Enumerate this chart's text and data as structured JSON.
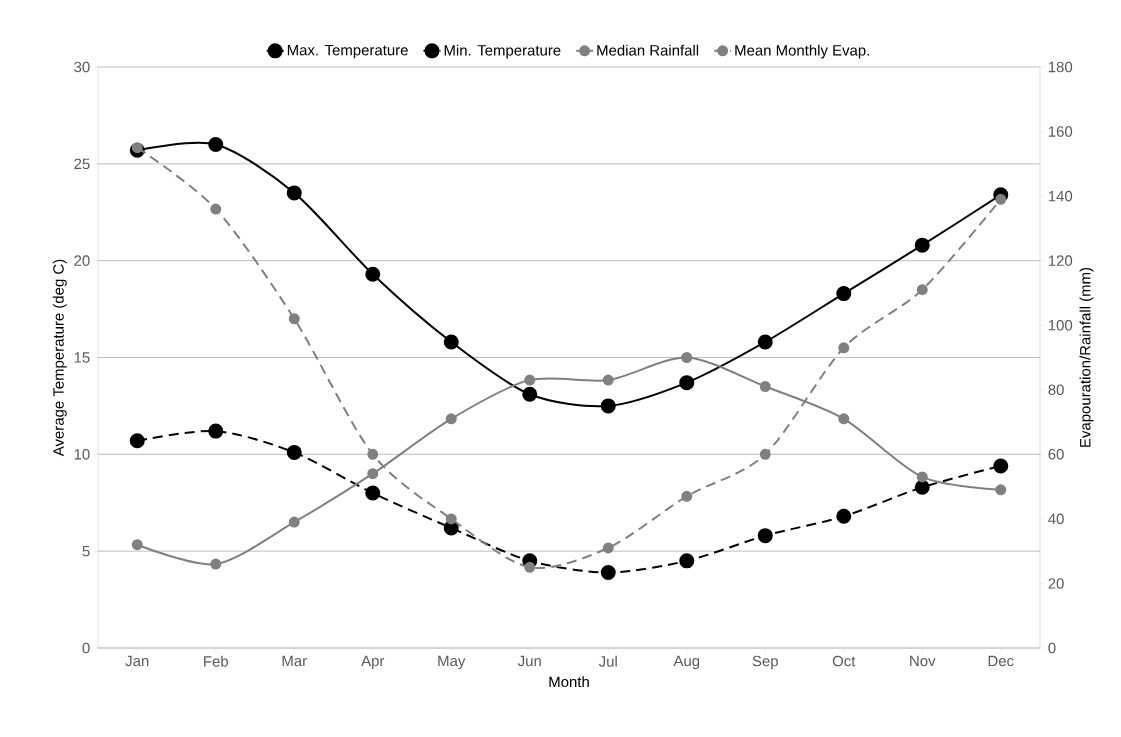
{
  "chart_data": {
    "type": "line",
    "xlabel": "Month",
    "ylabel": "Average Temperature (deg C)",
    "y2label": "Evapouration/Rainfall (mm)",
    "categories": [
      "Jan",
      "Feb",
      "Mar",
      "Apr",
      "May",
      "Jun",
      "Jul",
      "Aug",
      "Sep",
      "Oct",
      "Nov",
      "Dec"
    ],
    "series": [
      {
        "name": "Max. Temperature",
        "color": "#000000",
        "line_style": "solid",
        "values": [
          25.7,
          26.0,
          23.5,
          19.3,
          15.8,
          13.1,
          12.5,
          13.7,
          15.8,
          18.3,
          20.8,
          23.4
        ]
      },
      {
        "name": "Min. Temperature",
        "color": "#000000",
        "line_style": "dashed",
        "values": [
          10.7,
          11.2,
          10.1,
          8.0,
          6.2,
          4.5,
          3.9,
          4.5,
          5.8,
          6.8,
          8.3,
          9.4
        ]
      },
      {
        "name": "Median Rainfall",
        "color": "#808080",
        "line_style": "solid",
        "axis": "y2",
        "values": [
          32,
          26,
          39,
          54,
          71,
          83,
          83,
          90,
          81,
          71,
          53,
          49
        ]
      },
      {
        "name": "Mean Monthly Evap.",
        "color": "#808080",
        "line_style": "dashed",
        "axis": "y2",
        "values": [
          155,
          136,
          102,
          60,
          40,
          25,
          31,
          47,
          60,
          93,
          111,
          139
        ]
      }
    ],
    "ylim": [
      0,
      30
    ],
    "yticks": [
      0,
      5,
      10,
      15,
      20,
      25,
      30
    ],
    "y2lim": [
      0,
      180
    ],
    "y2ticks": [
      0,
      20,
      40,
      60,
      80,
      100,
      120,
      140,
      160,
      180
    ],
    "grid": "y",
    "legend": "top",
    "marker": "circle"
  }
}
